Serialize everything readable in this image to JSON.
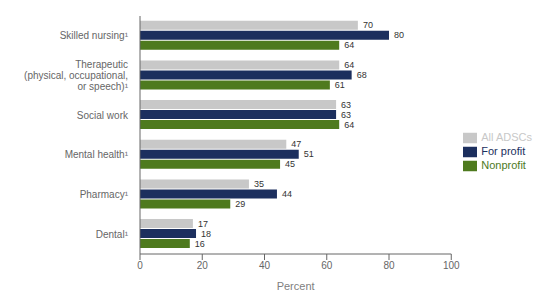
{
  "chart_data": {
    "type": "bar",
    "orientation": "horizontal",
    "categories": [
      "Skilled nursing¹",
      "Therapeutic\n(physical, occupational,\nor speech)¹",
      "Social work",
      "Mental health¹",
      "Pharmacy¹",
      "Dental¹"
    ],
    "series": [
      {
        "name": "All ADSCs",
        "color": "#c8c8c8",
        "values": [
          70,
          64,
          63,
          47,
          35,
          17
        ]
      },
      {
        "name": "For profit",
        "color": "#1c2f5e",
        "values": [
          80,
          68,
          63,
          51,
          44,
          18
        ]
      },
      {
        "name": "Nonprofit",
        "color": "#4e7a1e",
        "values": [
          64,
          61,
          64,
          45,
          29,
          16
        ]
      }
    ],
    "xlabel": "Percent",
    "xlim": [
      0,
      100
    ],
    "xticks": [
      0,
      20,
      40,
      60,
      80,
      100
    ],
    "data_labels": true,
    "legend": "right",
    "grid": false
  }
}
